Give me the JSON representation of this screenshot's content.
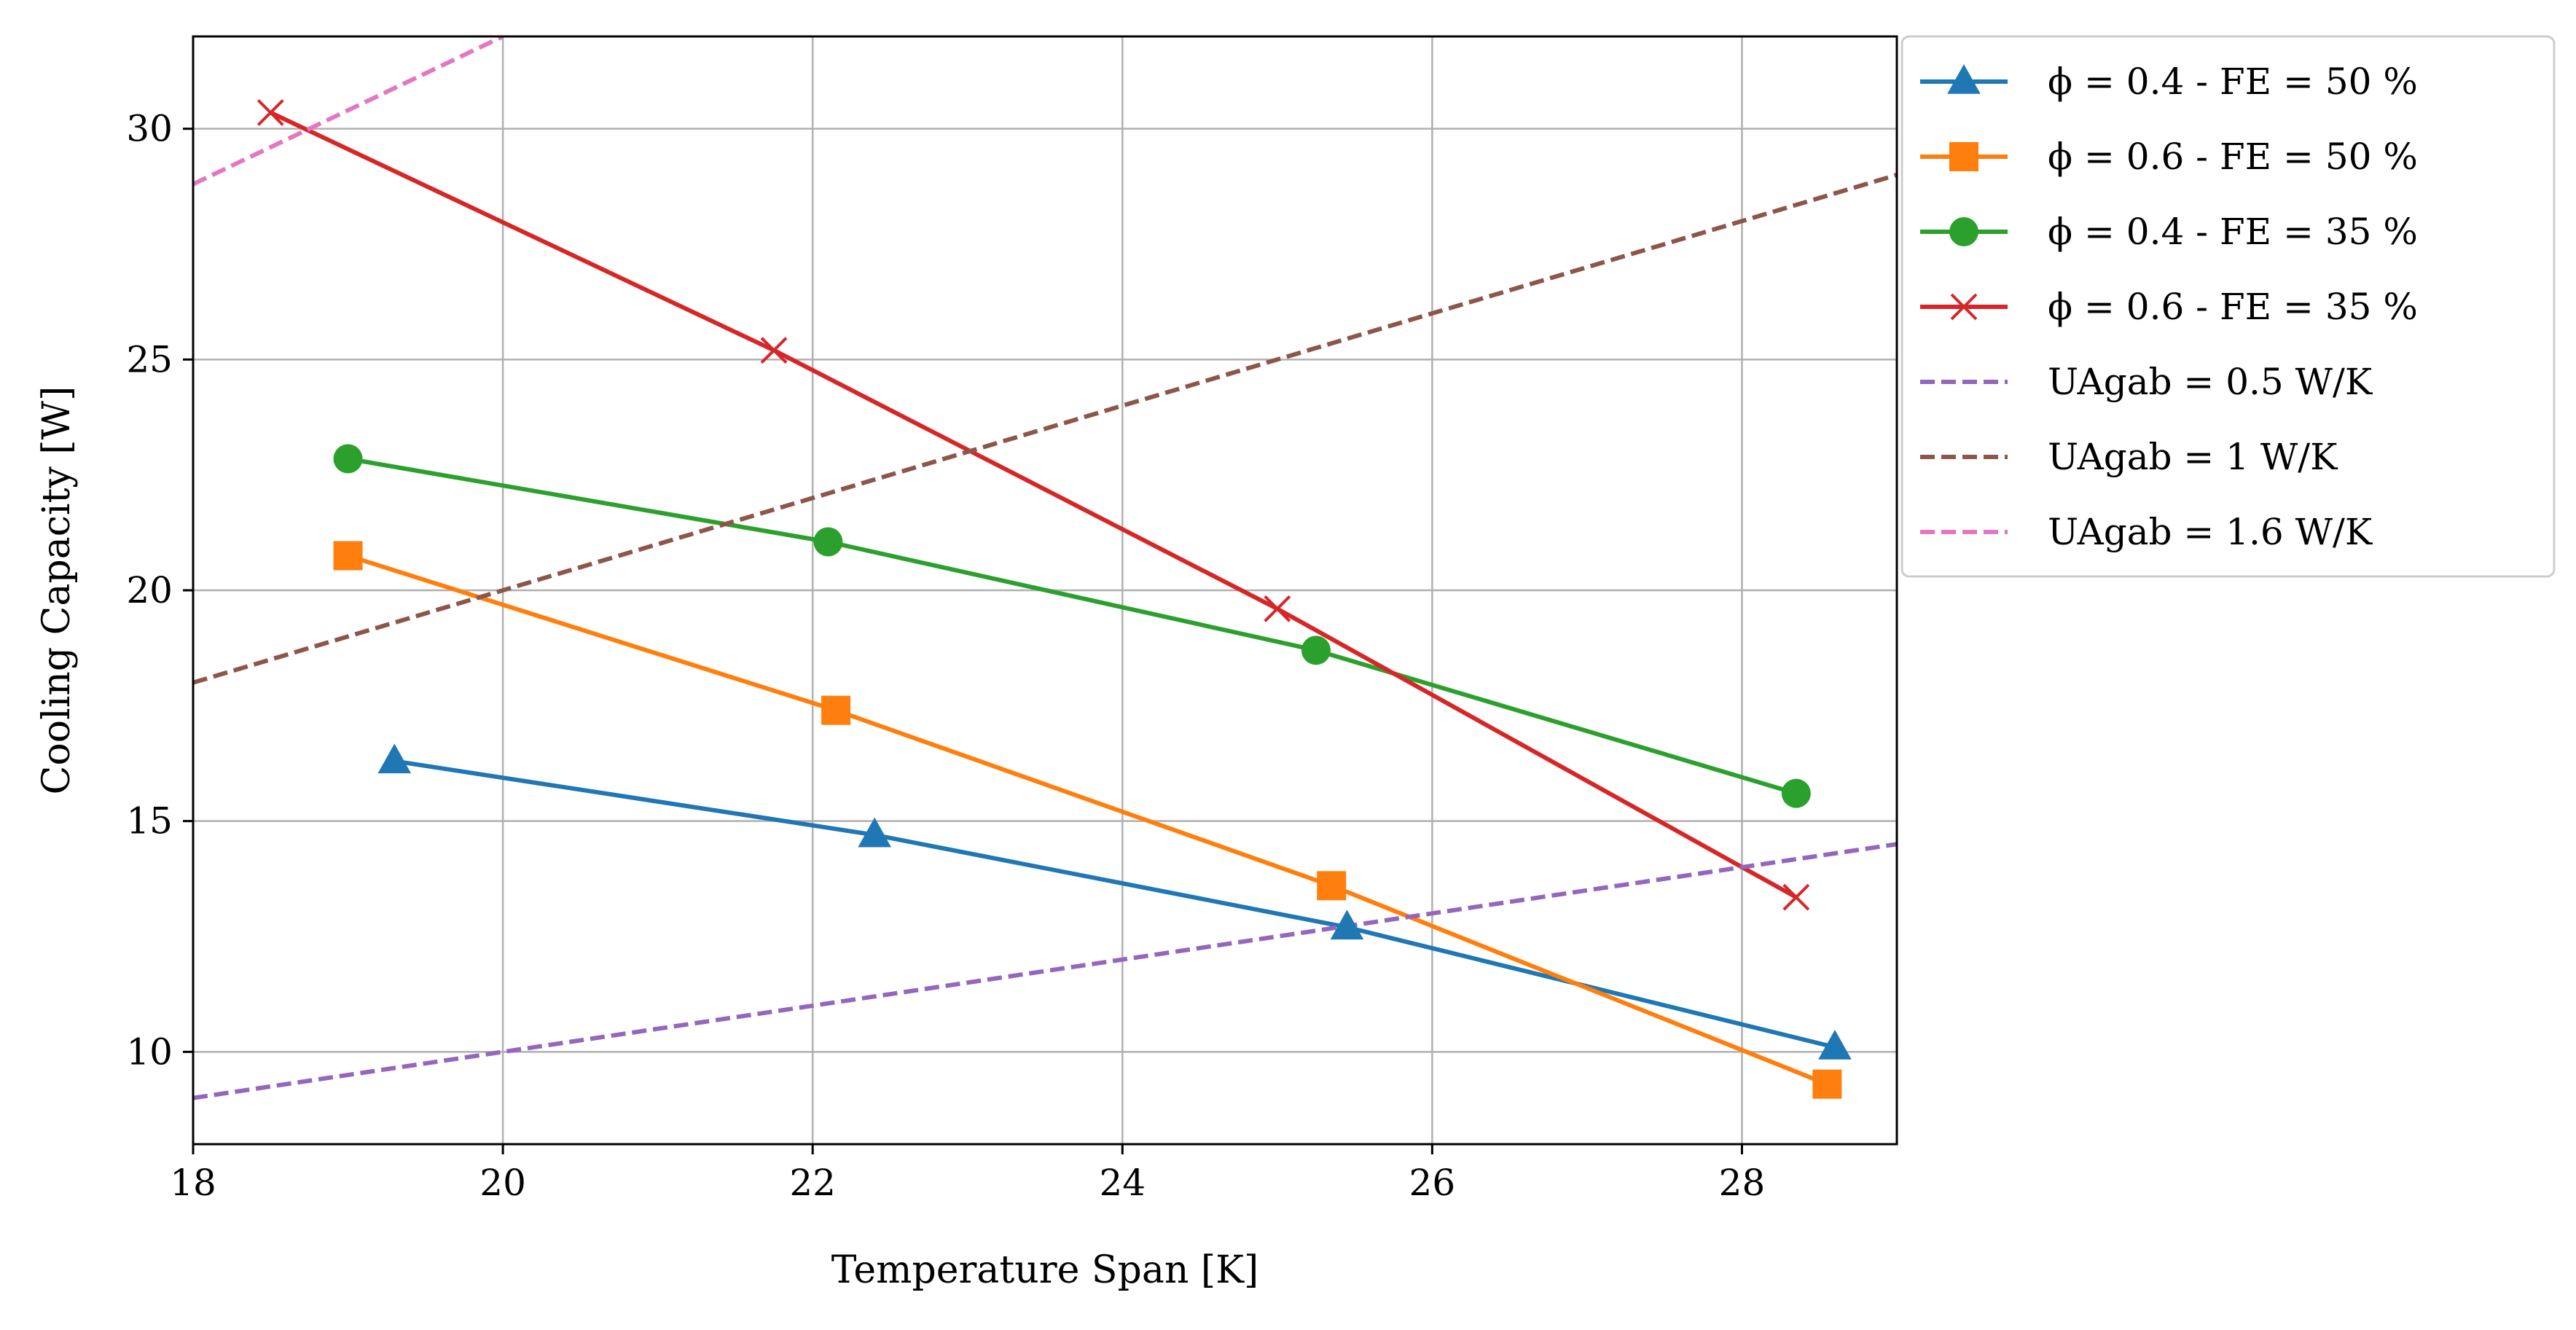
{
  "chart_data": {
    "type": "line",
    "title": "",
    "xlabel": "Temperature Span [K]",
    "ylabel": "Cooling Capacity [W]",
    "xlim": [
      18,
      29
    ],
    "ylim": [
      8,
      32
    ],
    "xticks": [
      18,
      20,
      22,
      24,
      26,
      28
    ],
    "yticks": [
      10,
      15,
      20,
      25,
      30
    ],
    "grid": true,
    "legend_position": "outside right, top",
    "series": [
      {
        "name": "ϕ = 0.4 - FE = 50 %",
        "color": "#1f77b4",
        "marker": "triangle",
        "line_style": "solid",
        "points": [
          [
            19.3,
            16.3
          ],
          [
            22.4,
            14.7
          ],
          [
            25.45,
            12.7
          ],
          [
            28.6,
            10.1
          ]
        ]
      },
      {
        "name": "ϕ = 0.6 - FE = 50 %",
        "color": "#ff7f0e",
        "marker": "square",
        "line_style": "solid",
        "points": [
          [
            19.0,
            20.75
          ],
          [
            22.15,
            17.4
          ],
          [
            25.35,
            13.6
          ],
          [
            28.55,
            9.3
          ]
        ]
      },
      {
        "name": "ϕ = 0.4 - FE = 35 %",
        "color": "#2ca02c",
        "marker": "circle",
        "line_style": "solid",
        "points": [
          [
            19.0,
            22.85
          ],
          [
            22.1,
            21.05
          ],
          [
            25.25,
            18.7
          ],
          [
            28.35,
            15.6
          ]
        ]
      },
      {
        "name": "ϕ = 0.6 - FE = 35 %",
        "color": "#d62728",
        "marker": "x",
        "line_style": "solid",
        "points": [
          [
            18.5,
            30.35
          ],
          [
            21.75,
            25.2
          ],
          [
            25.0,
            19.6
          ],
          [
            28.35,
            13.35
          ]
        ]
      },
      {
        "name": "UAgab = 0.5 W/K",
        "color": "#9467bd",
        "marker": "none",
        "line_style": "dashed",
        "points": [
          [
            18,
            9
          ],
          [
            29,
            14.5
          ]
        ]
      },
      {
        "name": "UAgab = 1 W/K",
        "color": "#8c564b",
        "marker": "none",
        "line_style": "dashed",
        "points": [
          [
            18,
            18
          ],
          [
            29,
            29
          ]
        ]
      },
      {
        "name": "UAgab = 1.6 W/K",
        "color": "#e377c2",
        "marker": "none",
        "line_style": "dashed",
        "points": [
          [
            18,
            28.8
          ],
          [
            20,
            32
          ]
        ]
      }
    ]
  }
}
